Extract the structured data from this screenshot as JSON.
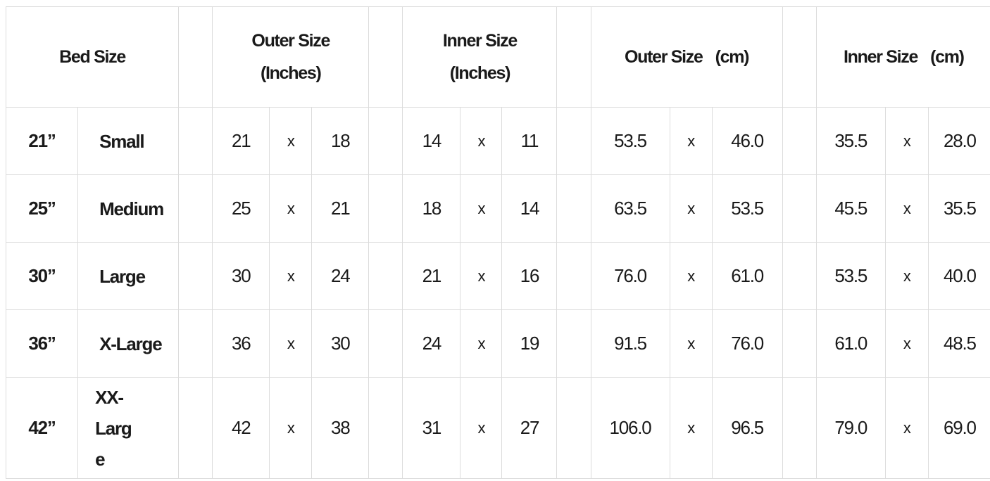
{
  "headers": {
    "bed_size": "Bed Size",
    "outer_in_1": "Outer Size",
    "outer_in_2": "(Inches)",
    "inner_in_1": "Inner Size",
    "inner_in_2": "(Inches)",
    "outer_cm_1": "Outer Size",
    "outer_cm_2": "(cm)",
    "inner_cm_1": "Inner Size",
    "inner_cm_2": "(cm)"
  },
  "separator": "x",
  "rows": [
    {
      "inch": "21”",
      "name": "Small",
      "outer_in": [
        "21",
        "18"
      ],
      "inner_in": [
        "14",
        "11"
      ],
      "outer_cm": [
        "53.5",
        "46.0"
      ],
      "inner_cm": [
        "35.5",
        "28.0"
      ]
    },
    {
      "inch": "25”",
      "name": "Medium",
      "outer_in": [
        "25",
        "21"
      ],
      "inner_in": [
        "18",
        "14"
      ],
      "outer_cm": [
        "63.5",
        "53.5"
      ],
      "inner_cm": [
        "45.5",
        "35.5"
      ]
    },
    {
      "inch": "30”",
      "name": "Large",
      "outer_in": [
        "30",
        "24"
      ],
      "inner_in": [
        "21",
        "16"
      ],
      "outer_cm": [
        "76.0",
        "61.0"
      ],
      "inner_cm": [
        "53.5",
        "40.0"
      ]
    },
    {
      "inch": "36”",
      "name": "X-Large",
      "outer_in": [
        "36",
        "30"
      ],
      "inner_in": [
        "24",
        "19"
      ],
      "outer_cm": [
        "91.5",
        "76.0"
      ],
      "inner_cm": [
        "61.0",
        "48.5"
      ]
    },
    {
      "inch": "42”",
      "name": "XX-Large",
      "outer_in": [
        "42",
        "38"
      ],
      "inner_in": [
        "31",
        "27"
      ],
      "outer_cm": [
        "106.0",
        "96.5"
      ],
      "inner_cm": [
        "79.0",
        "69.0"
      ]
    }
  ]
}
